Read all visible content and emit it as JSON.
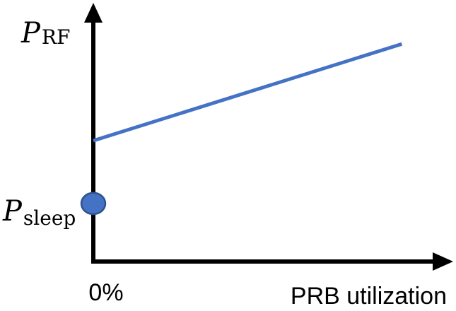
{
  "chart_data": {
    "type": "line",
    "title": "",
    "xlabel": "PRB utilization",
    "ylabel": "P_RF",
    "x_tick_labels": [
      "0%"
    ],
    "y_annotations": [
      {
        "var": "P",
        "sub": "RF"
      },
      {
        "var": "P",
        "sub": "sleep"
      }
    ],
    "series": [
      {
        "x": [
          0,
          1
        ],
        "y": [
          0.5,
          0.9
        ],
        "color": "#4472C4"
      }
    ],
    "points": [
      {
        "x": 0,
        "y": 0.24,
        "color": "#4472C4",
        "label": "P_sleep"
      }
    ],
    "xlim": [
      0,
      1.1
    ],
    "ylim": [
      0,
      1
    ],
    "grid": false,
    "legend": "none",
    "colors": {
      "line": "#4472C4",
      "marker_fill": "#4472C4",
      "marker_stroke": "#2F528F",
      "axis": "#000000"
    }
  }
}
